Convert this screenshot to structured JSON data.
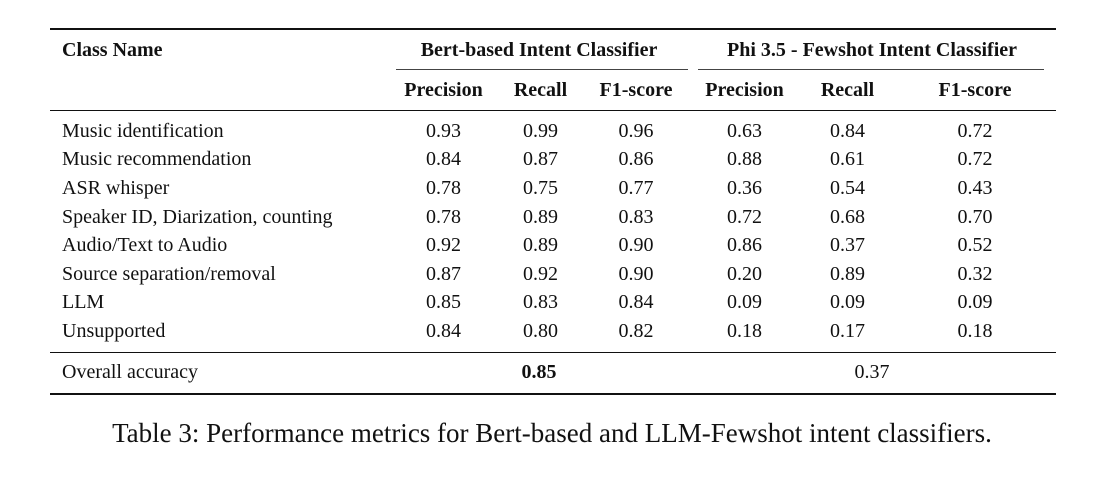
{
  "table": {
    "header": {
      "class_name": "Class Name",
      "group_bert": "Bert-based Intent Classifier",
      "group_phi": "Phi 3.5 - Fewshot Intent Classifier",
      "bert_cols": [
        "Precision",
        "Recall",
        "F1-score"
      ],
      "phi_cols": [
        "Precision",
        "Recall",
        "F1-score"
      ]
    },
    "rows": [
      {
        "name": "Music identification",
        "bert": [
          "0.93",
          "0.99",
          "0.96"
        ],
        "phi": [
          "0.63",
          "0.84",
          "0.72"
        ]
      },
      {
        "name": "Music recommendation",
        "bert": [
          "0.84",
          "0.87",
          "0.86"
        ],
        "phi": [
          "0.88",
          "0.61",
          "0.72"
        ]
      },
      {
        "name": "ASR whisper",
        "bert": [
          "0.78",
          "0.75",
          "0.77"
        ],
        "phi": [
          "0.36",
          "0.54",
          "0.43"
        ]
      },
      {
        "name": "Speaker ID, Diarization, counting",
        "bert": [
          "0.78",
          "0.89",
          "0.83"
        ],
        "phi": [
          "0.72",
          "0.68",
          "0.70"
        ]
      },
      {
        "name": "Audio/Text to Audio",
        "bert": [
          "0.92",
          "0.89",
          "0.90"
        ],
        "phi": [
          "0.86",
          "0.37",
          "0.52"
        ]
      },
      {
        "name": "Source separation/removal",
        "bert": [
          "0.87",
          "0.92",
          "0.90"
        ],
        "phi": [
          "0.20",
          "0.89",
          "0.32"
        ]
      },
      {
        "name": "LLM",
        "bert": [
          "0.85",
          "0.83",
          "0.84"
        ],
        "phi": [
          "0.09",
          "0.09",
          "0.09"
        ]
      },
      {
        "name": "Unsupported",
        "bert": [
          "0.84",
          "0.80",
          "0.82"
        ],
        "phi": [
          "0.18",
          "0.17",
          "0.18"
        ]
      }
    ],
    "overall": {
      "label": "Overall accuracy",
      "bert": "0.85",
      "phi": "0.37"
    }
  },
  "caption": "Table 3: Performance metrics for Bert-based and LLM-Fewshot intent classifiers."
}
